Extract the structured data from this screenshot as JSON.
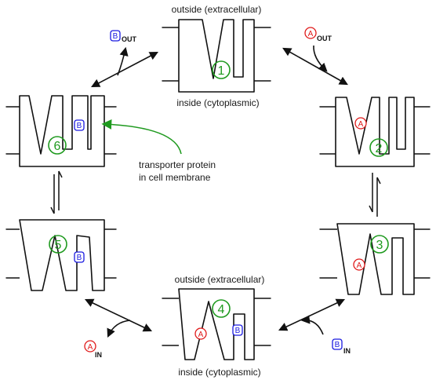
{
  "labels": {
    "outside_top": "outside (extracellular)",
    "inside_top": "inside (cytoplasmic)",
    "outside_bottom": "outside (extracellular)",
    "inside_bottom": "inside (cytoplasmic)",
    "transporter_line1": "transporter protein",
    "transporter_line2": "in cell membrane"
  },
  "states": [
    "1",
    "2",
    "3",
    "4",
    "5",
    "6"
  ],
  "particles": {
    "a": "A",
    "b": "B",
    "out": "OUT",
    "in": "IN"
  },
  "colors": {
    "state_number": "#1f9a1f",
    "particle_a": "#e01a1a",
    "particle_b": "#1a1ae0",
    "pointer": "#1f9a1f",
    "ink": "#111111"
  }
}
